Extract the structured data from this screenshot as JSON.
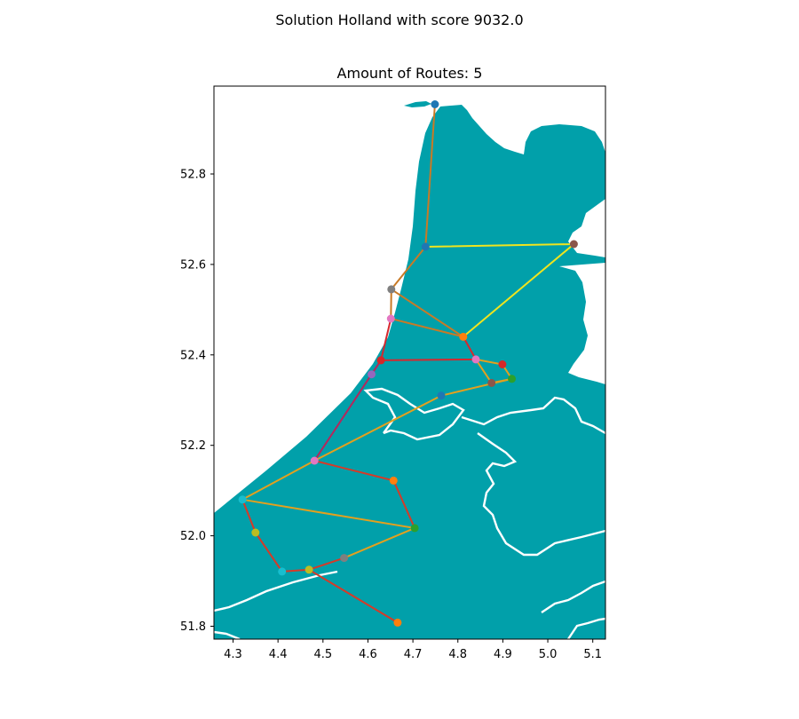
{
  "suptitle": "Solution Holland with score 9032.0",
  "title": "Amount of Routes: 5",
  "colors": {
    "land": "#01a0aa",
    "river": "#ffffff",
    "background": "#ffffff"
  },
  "chart_data": {
    "type": "map-routes",
    "xlim": [
      4.25,
      5.12
    ],
    "ylim": [
      51.77,
      51.99
    ],
    "xticks": [
      4.3,
      4.4,
      4.5,
      4.6,
      4.7,
      4.8,
      4.9,
      5.0,
      5.1
    ],
    "yticks": [
      51.8,
      52.0,
      52.2,
      52.4,
      52.6,
      52.8
    ],
    "stations": [
      {
        "x": 4.749,
        "y": 52.954,
        "color": "#1f77b4"
      },
      {
        "x": 4.728,
        "y": 52.639,
        "color": "#1f77b4"
      },
      {
        "x": 5.058,
        "y": 52.645,
        "color": "#8c564b"
      },
      {
        "x": 4.652,
        "y": 52.545,
        "color": "#7f7f7f"
      },
      {
        "x": 4.651,
        "y": 52.48,
        "color": "#e377c2"
      },
      {
        "x": 4.812,
        "y": 52.44,
        "color": "#ff7f0e"
      },
      {
        "x": 4.629,
        "y": 52.388,
        "color": "#d62728"
      },
      {
        "x": 4.84,
        "y": 52.39,
        "color": "#e377c2"
      },
      {
        "x": 4.899,
        "y": 52.379,
        "color": "#d62728"
      },
      {
        "x": 4.608,
        "y": 52.357,
        "color": "#9467bd"
      },
      {
        "x": 4.92,
        "y": 52.347,
        "color": "#2ca02c"
      },
      {
        "x": 4.875,
        "y": 52.338,
        "color": "#8c564b"
      },
      {
        "x": 4.763,
        "y": 52.31,
        "color": "#1f77b4"
      },
      {
        "x": 4.481,
        "y": 52.166,
        "color": "#e377c2"
      },
      {
        "x": 4.657,
        "y": 52.122,
        "color": "#ff7f0e"
      },
      {
        "x": 4.321,
        "y": 52.08,
        "color": "#17becf"
      },
      {
        "x": 4.704,
        "y": 52.017,
        "color": "#2ca02c"
      },
      {
        "x": 4.35,
        "y": 52.007,
        "color": "#bcbd22"
      },
      {
        "x": 4.547,
        "y": 51.951,
        "color": "#7f7f7f"
      },
      {
        "x": 4.469,
        "y": 51.925,
        "color": "#bcbd22"
      },
      {
        "x": 4.409,
        "y": 51.921,
        "color": "#17becf"
      },
      {
        "x": 4.666,
        "y": 51.808,
        "color": "#ff7f0e"
      }
    ],
    "routes": [
      {
        "color": "#c87a26",
        "path": [
          [
            4.749,
            52.954
          ],
          [
            4.728,
            52.639
          ],
          [
            4.652,
            52.545
          ],
          [
            4.812,
            52.44
          ],
          [
            4.651,
            52.48
          ],
          [
            4.652,
            52.545
          ]
        ]
      },
      {
        "color": "#f0e41e",
        "path": [
          [
            4.728,
            52.639
          ],
          [
            5.058,
            52.645
          ],
          [
            4.812,
            52.44
          ]
        ]
      },
      {
        "color": "#d6282e",
        "path": [
          [
            4.812,
            52.44
          ],
          [
            4.84,
            52.39
          ],
          [
            4.629,
            52.388
          ],
          [
            4.651,
            52.48
          ]
        ]
      },
      {
        "color": "#b5265c",
        "path": [
          [
            4.629,
            52.388
          ],
          [
            4.608,
            52.357
          ],
          [
            4.481,
            52.166
          ]
        ]
      },
      {
        "color": "#e3a01e",
        "path": [
          [
            4.84,
            52.39
          ],
          [
            4.899,
            52.379
          ],
          [
            4.92,
            52.347
          ],
          [
            4.875,
            52.338
          ],
          [
            4.84,
            52.39
          ]
        ]
      },
      {
        "color": "#e3a01e",
        "path": [
          [
            4.92,
            52.347
          ],
          [
            4.763,
            52.31
          ],
          [
            4.481,
            52.166
          ],
          [
            4.321,
            52.08
          ],
          [
            4.704,
            52.017
          ],
          [
            4.547,
            51.951
          ]
        ]
      },
      {
        "color": "#d63a28",
        "path": [
          [
            4.481,
            52.166
          ],
          [
            4.657,
            52.122
          ],
          [
            4.704,
            52.017
          ]
        ]
      },
      {
        "color": "#d63a28",
        "path": [
          [
            4.321,
            52.08
          ],
          [
            4.35,
            52.007
          ],
          [
            4.409,
            51.921
          ],
          [
            4.469,
            51.925
          ],
          [
            4.547,
            51.951
          ]
        ]
      },
      {
        "color": "#d63a28",
        "path": [
          [
            4.469,
            51.925
          ],
          [
            4.666,
            51.808
          ]
        ]
      }
    ]
  }
}
